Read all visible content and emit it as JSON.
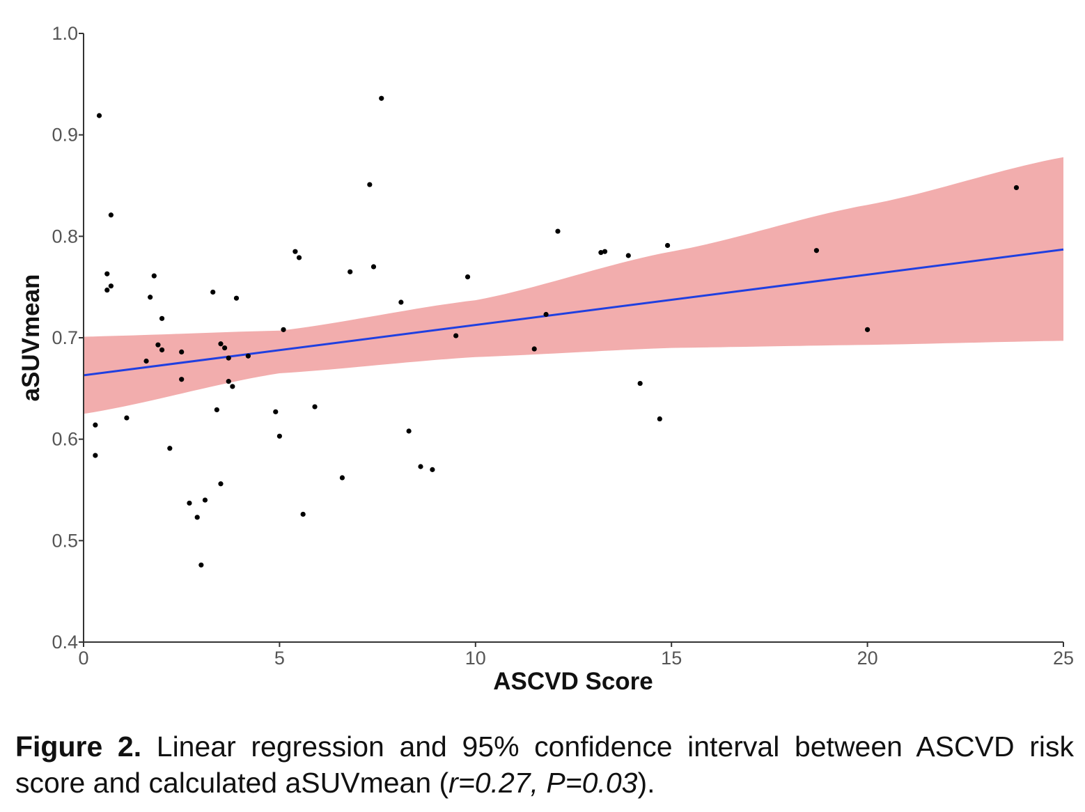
{
  "chart_data": {
    "type": "scatter",
    "xlabel": "ASCVD Score",
    "ylabel": "aSUVmean",
    "xlim": [
      0,
      25
    ],
    "ylim": [
      0.4,
      1.0
    ],
    "x_ticks": [
      "0",
      "5",
      "10",
      "15",
      "20",
      "25"
    ],
    "y_ticks": [
      "0.4",
      "0.5",
      "0.6",
      "0.7",
      "0.8",
      "0.9",
      "1.0"
    ],
    "grid": false,
    "points": [
      [
        0.4,
        0.919
      ],
      [
        0.7,
        0.821
      ],
      [
        0.6,
        0.763
      ],
      [
        0.6,
        0.747
      ],
      [
        0.7,
        0.751
      ],
      [
        0.3,
        0.614
      ],
      [
        0.3,
        0.584
      ],
      [
        1.1,
        0.621
      ],
      [
        1.6,
        0.677
      ],
      [
        1.7,
        0.74
      ],
      [
        1.8,
        0.761
      ],
      [
        1.9,
        0.693
      ],
      [
        2.0,
        0.688
      ],
      [
        2.0,
        0.719
      ],
      [
        2.2,
        0.591
      ],
      [
        2.5,
        0.686
      ],
      [
        2.5,
        0.659
      ],
      [
        2.7,
        0.537
      ],
      [
        2.9,
        0.523
      ],
      [
        3.0,
        0.476
      ],
      [
        3.1,
        0.54
      ],
      [
        3.3,
        0.745
      ],
      [
        3.4,
        0.629
      ],
      [
        3.5,
        0.694
      ],
      [
        3.5,
        0.556
      ],
      [
        3.6,
        0.69
      ],
      [
        3.7,
        0.68
      ],
      [
        3.7,
        0.657
      ],
      [
        3.8,
        0.652
      ],
      [
        3.9,
        0.739
      ],
      [
        4.2,
        0.682
      ],
      [
        4.9,
        0.627
      ],
      [
        5.0,
        0.603
      ],
      [
        5.1,
        0.708
      ],
      [
        5.4,
        0.785
      ],
      [
        5.5,
        0.779
      ],
      [
        5.6,
        0.526
      ],
      [
        5.9,
        0.632
      ],
      [
        6.6,
        0.562
      ],
      [
        6.8,
        0.765
      ],
      [
        7.3,
        0.851
      ],
      [
        7.4,
        0.77
      ],
      [
        7.6,
        0.936
      ],
      [
        8.1,
        0.735
      ],
      [
        8.3,
        0.608
      ],
      [
        8.6,
        0.573
      ],
      [
        8.9,
        0.57
      ],
      [
        9.5,
        0.702
      ],
      [
        9.8,
        0.76
      ],
      [
        11.5,
        0.689
      ],
      [
        11.8,
        0.723
      ],
      [
        12.1,
        0.805
      ],
      [
        13.2,
        0.784
      ],
      [
        13.3,
        0.785
      ],
      [
        13.9,
        0.781
      ],
      [
        14.2,
        0.655
      ],
      [
        14.7,
        0.62
      ],
      [
        14.9,
        0.791
      ],
      [
        18.7,
        0.786
      ],
      [
        20.0,
        0.708
      ],
      [
        23.8,
        0.848
      ]
    ],
    "regression_line": {
      "x": [
        0,
        25
      ],
      "y": [
        0.663,
        0.787
      ]
    },
    "confidence_band": {
      "x": [
        0,
        5,
        10,
        15,
        20,
        25
      ],
      "upper": [
        0.701,
        0.707,
        0.737,
        0.785,
        0.831,
        0.878
      ],
      "lower": [
        0.625,
        0.665,
        0.681,
        0.69,
        0.693,
        0.697
      ]
    },
    "colors": {
      "points": "#000000",
      "line": "#1f3fe0",
      "band": "#f2adad",
      "axis": "#333333"
    }
  },
  "caption": {
    "label": "Figure 2.",
    "text_before": " Linear regression and 95% confidence interval between ASCVD risk score and calculated aSUVmean (",
    "stat": "r=0.27, P=0.03",
    "text_after": ")."
  }
}
